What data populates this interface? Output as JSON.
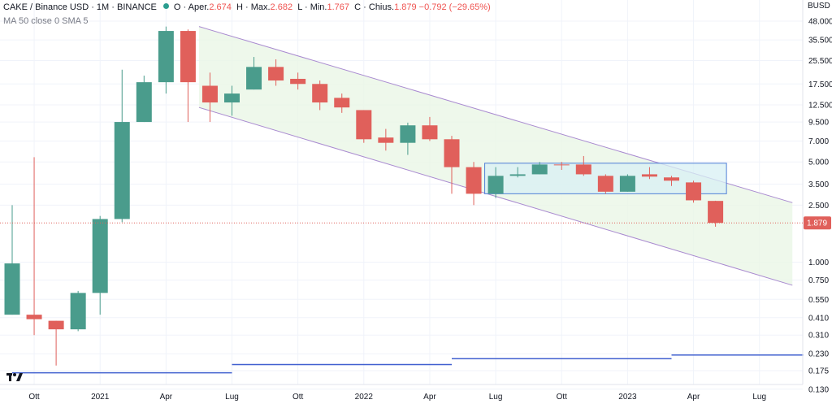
{
  "header": {
    "symbol": "CAKE / Binance USD · 1M · BINANCE",
    "o_label": "O",
    "o_key": "Aper.",
    "o_val": "2.674",
    "h_label": "H",
    "h_key": "Max.",
    "h_val": "2.682",
    "l_label": "L",
    "l_key": "Min.",
    "l_val": "1.767",
    "c_label": "C",
    "c_key": "Chius.",
    "c_val": "1.879",
    "change": "−0.792 (−29.65%)",
    "indicator": "MA 50 close 0 SMA 5",
    "currency": "BUSD"
  },
  "colors": {
    "up": "#4a9c8c",
    "down": "#e0605b",
    "channel_line": "#a98ad0",
    "channel_fill": "#eaf6e6",
    "box_fill": "#d8f0f4",
    "box_stroke": "#4f7fd6",
    "ma_line": "#3f5fcf"
  },
  "chart_data": {
    "type": "candlestick",
    "scale": "log",
    "price_label": "1.879",
    "y_ticks": [
      "48.000",
      "35.500",
      "25.500",
      "17.500",
      "12.500",
      "9.500",
      "7.000",
      "5.000",
      "3.500",
      "2.500",
      "1.000",
      "0.750",
      "0.550",
      "0.410",
      "0.310",
      "0.230",
      "0.175",
      "0.130"
    ],
    "x_ticks": [
      {
        "label": "Ott",
        "index": 1
      },
      {
        "label": "2021",
        "index": 4
      },
      {
        "label": "Apr",
        "index": 7
      },
      {
        "label": "Lug",
        "index": 10
      },
      {
        "label": "Ott",
        "index": 13
      },
      {
        "label": "2022",
        "index": 16
      },
      {
        "label": "Apr",
        "index": 19
      },
      {
        "label": "Lug",
        "index": 22
      },
      {
        "label": "Ott",
        "index": 25
      },
      {
        "label": "2023",
        "index": 28
      },
      {
        "label": "Apr",
        "index": 31
      },
      {
        "label": "Lug",
        "index": 34
      }
    ],
    "candles": [
      {
        "o": 0.43,
        "h": 2.5,
        "l": 0.43,
        "c": 0.98
      },
      {
        "o": 0.43,
        "h": 5.4,
        "l": 0.31,
        "c": 0.4
      },
      {
        "o": 0.39,
        "h": 0.39,
        "l": 0.19,
        "c": 0.34
      },
      {
        "o": 0.34,
        "h": 0.63,
        "l": 0.33,
        "c": 0.61
      },
      {
        "o": 0.61,
        "h": 2.1,
        "l": 0.43,
        "c": 2.0
      },
      {
        "o": 2.0,
        "h": 22.0,
        "l": 1.9,
        "c": 9.5
      },
      {
        "o": 9.5,
        "h": 20.0,
        "l": 9.5,
        "c": 18.0
      },
      {
        "o": 18.0,
        "h": 44.0,
        "l": 15.0,
        "c": 41.0
      },
      {
        "o": 41.0,
        "h": 42.0,
        "l": 9.5,
        "c": 18.0
      },
      {
        "o": 17.0,
        "h": 21.0,
        "l": 9.5,
        "c": 13.0
      },
      {
        "o": 13.0,
        "h": 17.0,
        "l": 10.5,
        "c": 15.0
      },
      {
        "o": 16.0,
        "h": 27.0,
        "l": 16.0,
        "c": 23.0
      },
      {
        "o": 23.0,
        "h": 26.0,
        "l": 17.0,
        "c": 18.5
      },
      {
        "o": 19.0,
        "h": 21.0,
        "l": 16.0,
        "c": 17.5
      },
      {
        "o": 17.5,
        "h": 18.5,
        "l": 11.5,
        "c": 13.0
      },
      {
        "o": 14.0,
        "h": 15.0,
        "l": 11.0,
        "c": 12.0
      },
      {
        "o": 11.5,
        "h": 11.5,
        "l": 6.8,
        "c": 7.2
      },
      {
        "o": 7.4,
        "h": 8.5,
        "l": 6.0,
        "c": 6.8
      },
      {
        "o": 6.8,
        "h": 9.4,
        "l": 5.6,
        "c": 9.0
      },
      {
        "o": 9.0,
        "h": 10.3,
        "l": 7.0,
        "c": 7.2
      },
      {
        "o": 7.2,
        "h": 7.6,
        "l": 3.0,
        "c": 4.6
      },
      {
        "o": 4.6,
        "h": 5.0,
        "l": 2.5,
        "c": 3.0
      },
      {
        "o": 3.0,
        "h": 4.6,
        "l": 2.8,
        "c": 4.0
      },
      {
        "o": 4.0,
        "h": 4.6,
        "l": 3.9,
        "c": 4.1
      },
      {
        "o": 4.1,
        "h": 5.0,
        "l": 4.1,
        "c": 4.8
      },
      {
        "o": 4.8,
        "h": 5.0,
        "l": 4.4,
        "c": 4.75
      },
      {
        "o": 4.8,
        "h": 5.5,
        "l": 4.0,
        "c": 4.1
      },
      {
        "o": 4.0,
        "h": 4.1,
        "l": 3.0,
        "c": 3.1
      },
      {
        "o": 3.1,
        "h": 4.1,
        "l": 3.1,
        "c": 4.0
      },
      {
        "o": 4.1,
        "h": 4.6,
        "l": 3.8,
        "c": 3.95
      },
      {
        "o": 3.9,
        "h": 4.0,
        "l": 3.4,
        "c": 3.7
      },
      {
        "o": 3.6,
        "h": 3.7,
        "l": 2.6,
        "c": 2.7
      },
      {
        "o": 2.674,
        "h": 2.682,
        "l": 1.767,
        "c": 1.879
      }
    ],
    "ma_line": [
      {
        "from": 0,
        "to": 10,
        "value": 0.169
      },
      {
        "from": 10,
        "to": 20,
        "value": 0.193
      },
      {
        "from": 20,
        "to": 30,
        "value": 0.212
      },
      {
        "from": 30,
        "to": 36,
        "value": 0.225
      }
    ],
    "channel": {
      "upper": [
        {
          "i": 8.5,
          "p": 44.0
        },
        {
          "i": 35.5,
          "p": 2.6
        }
      ],
      "lower": [
        {
          "i": 8.5,
          "p": 12.0
        },
        {
          "i": 35.5,
          "p": 0.69
        }
      ]
    },
    "range_box": {
      "from": 21.5,
      "to": 32.5,
      "top": 4.9,
      "bottom": 3.0
    }
  }
}
